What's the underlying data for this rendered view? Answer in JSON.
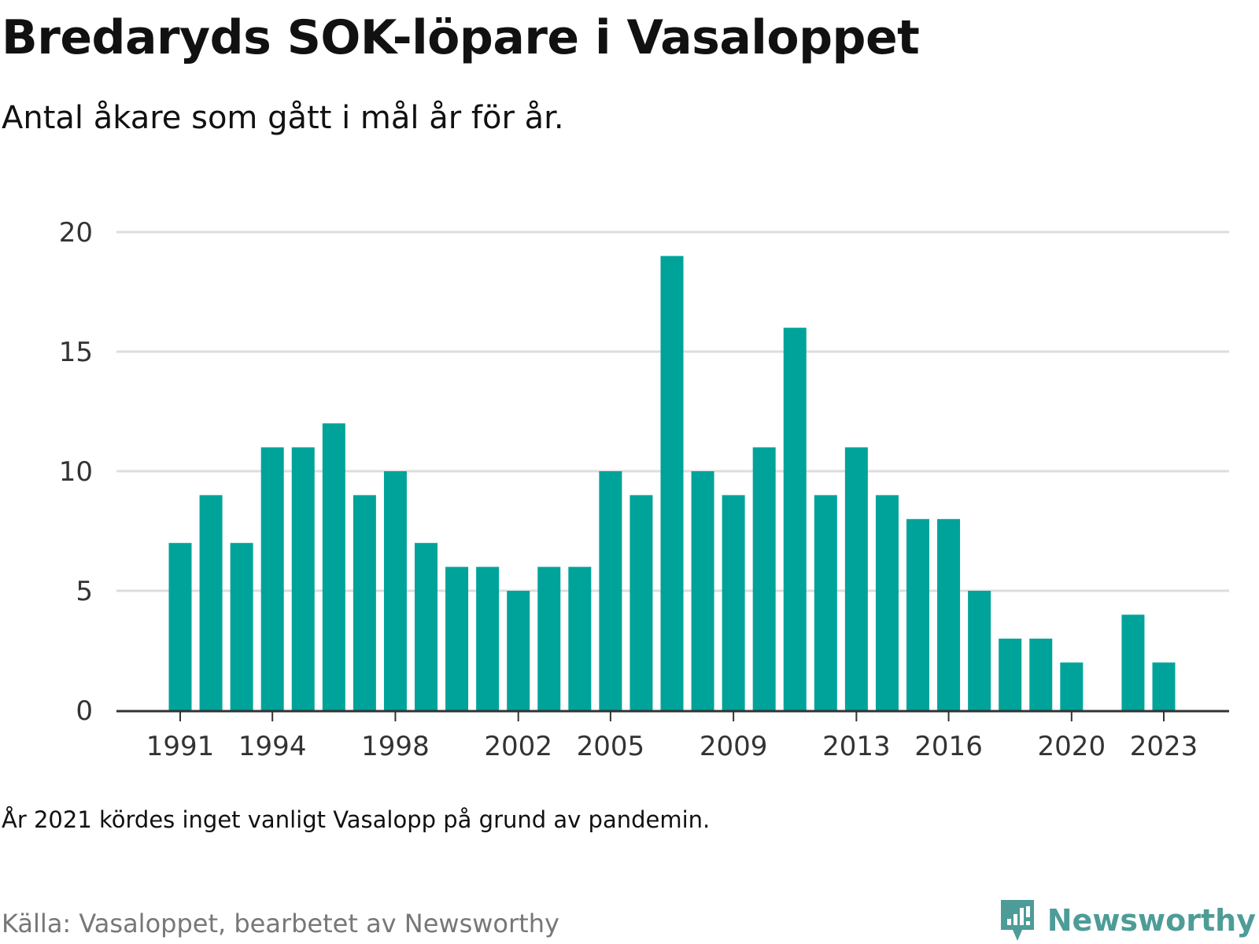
{
  "title": "Bredaryds SOK-löpare i Vasaloppet",
  "subtitle": "Antal åkare som gått i mål år för år.",
  "note": "År 2021 kördes inget vanligt Vasalopp på grund av pandemin.",
  "source": "Källa: Vasaloppet, bearbetet av Newsworthy",
  "brand": {
    "name": "Newsworthy",
    "logo_icon": "newsworthy-logo-icon",
    "color": "#4e9c97"
  },
  "colors": {
    "bar": "#00a39a",
    "grid": "#dddddd",
    "axis": "#333333",
    "tick_text": "#333333"
  },
  "chart_data": {
    "type": "bar",
    "title": "Bredaryds SOK-löpare i Vasaloppet",
    "subtitle": "Antal åkare som gått i mål år för år.",
    "xlabel": "",
    "ylabel": "",
    "categories": [
      1991,
      1992,
      1993,
      1994,
      1995,
      1996,
      1997,
      1998,
      1999,
      2000,
      2001,
      2002,
      2003,
      2004,
      2005,
      2006,
      2007,
      2008,
      2009,
      2010,
      2011,
      2012,
      2013,
      2014,
      2015,
      2016,
      2017,
      2018,
      2019,
      2020,
      2021,
      2022,
      2023
    ],
    "values": [
      7,
      9,
      7,
      11,
      11,
      12,
      9,
      10,
      7,
      6,
      6,
      5,
      6,
      6,
      10,
      9,
      19,
      10,
      9,
      11,
      16,
      9,
      11,
      9,
      8,
      8,
      5,
      3,
      3,
      2,
      null,
      4,
      2
    ],
    "x_ticks": [
      "1991",
      "1994",
      "1998",
      "2002",
      "2005",
      "2009",
      "2013",
      "2016",
      "2020",
      "2023"
    ],
    "y_ticks": [
      "0",
      "5",
      "10",
      "15",
      "20"
    ],
    "ylim": [
      0,
      20
    ],
    "grid": true,
    "legend": "none"
  }
}
